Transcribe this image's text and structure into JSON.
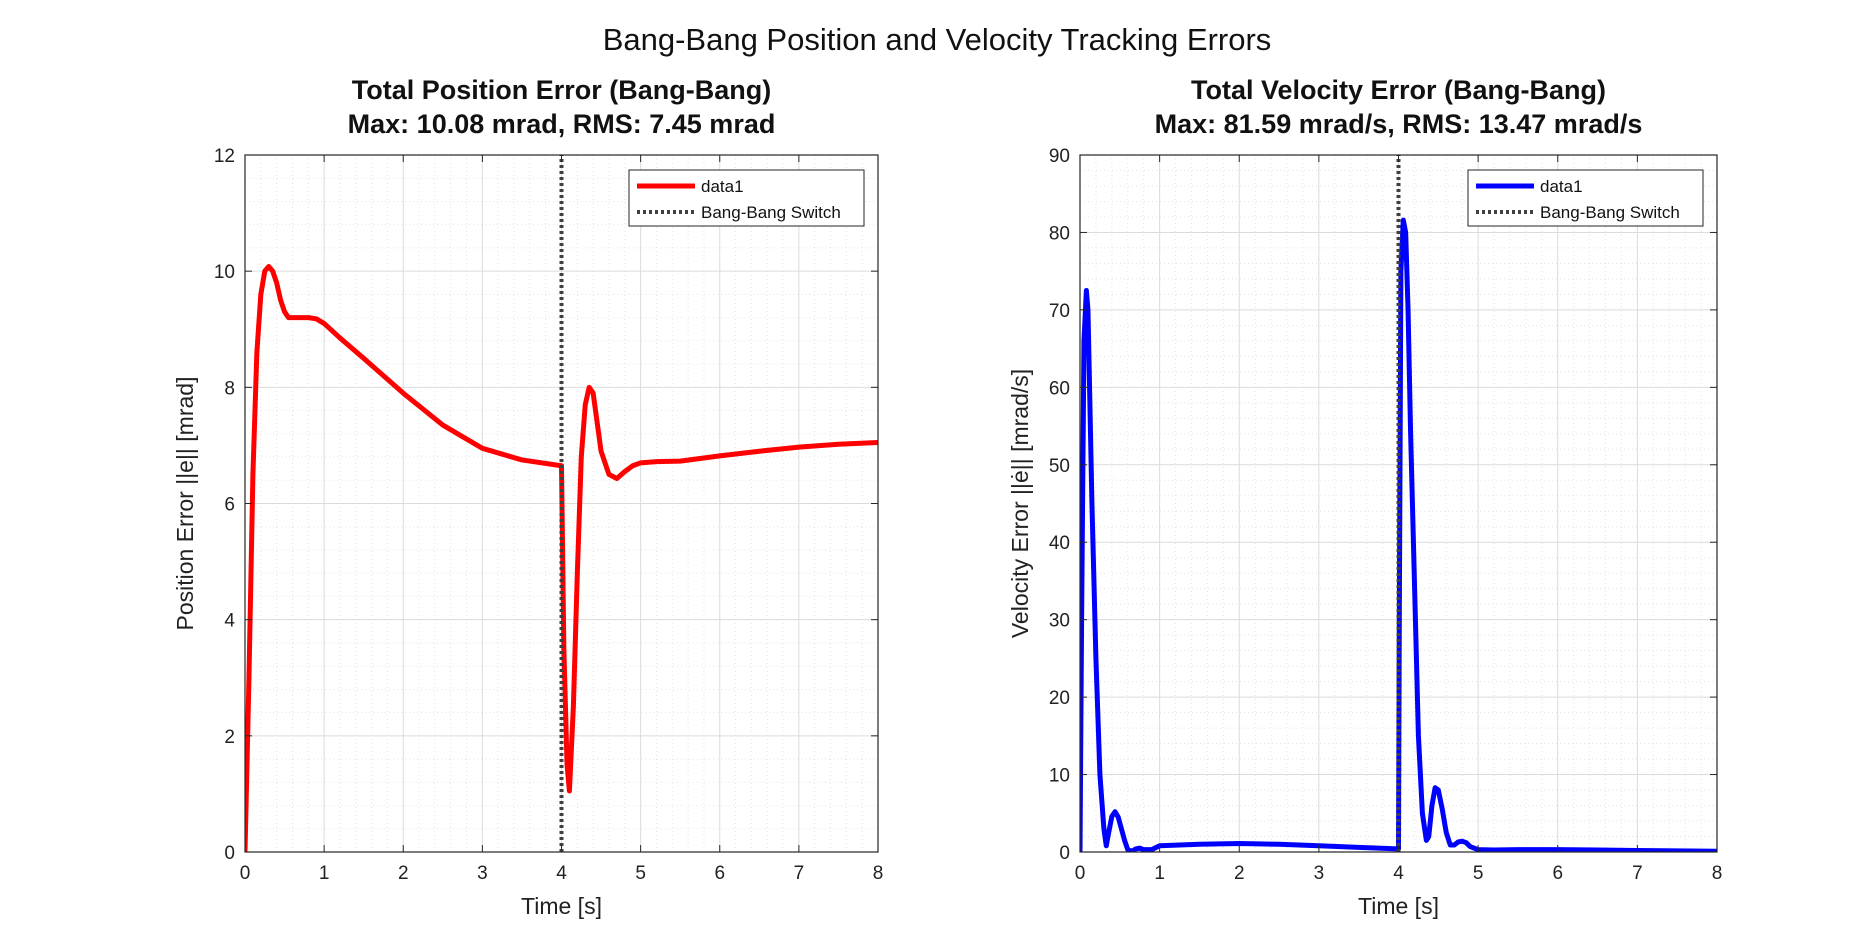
{
  "figure": {
    "suptitle": "Bang-Bang Position and Velocity Tracking Errors"
  },
  "chart_data": [
    {
      "type": "line",
      "title_line1": "Total Position Error (Bang-Bang)",
      "title_line2": "Max: 10.08 mrad, RMS: 7.45 mrad",
      "xlabel": "Time [s]",
      "ylabel": "Position Error ||e|| [mrad]",
      "xlim": [
        0,
        8
      ],
      "ylim": [
        0,
        12
      ],
      "xticks": [
        0,
        1,
        2,
        3,
        4,
        5,
        6,
        7,
        8
      ],
      "yticks": [
        0,
        2,
        4,
        6,
        8,
        10,
        12
      ],
      "grid": true,
      "minor_grid": true,
      "legend_position": "top-right",
      "switch_time": 4.0,
      "series": [
        {
          "name": "data1",
          "color": "#ff0000",
          "style": "solid",
          "x": [
            0,
            0.05,
            0.1,
            0.15,
            0.2,
            0.25,
            0.3,
            0.35,
            0.4,
            0.45,
            0.5,
            0.55,
            0.6,
            0.7,
            0.8,
            0.9,
            1.0,
            1.2,
            1.5,
            2.0,
            2.5,
            3.0,
            3.5,
            4.0,
            4.03,
            4.07,
            4.1,
            4.15,
            4.2,
            4.25,
            4.3,
            4.35,
            4.4,
            4.45,
            4.5,
            4.6,
            4.7,
            4.8,
            4.9,
            5.0,
            5.2,
            5.5,
            6.0,
            6.5,
            7.0,
            7.5,
            8.0
          ],
          "y": [
            0,
            3.0,
            6.5,
            8.6,
            9.6,
            10.0,
            10.08,
            10.0,
            9.8,
            9.5,
            9.3,
            9.2,
            9.2,
            9.2,
            9.2,
            9.18,
            9.1,
            8.85,
            8.5,
            7.9,
            7.35,
            6.95,
            6.75,
            6.65,
            3.5,
            1.5,
            1.05,
            2.5,
            4.8,
            6.8,
            7.7,
            8.0,
            7.9,
            7.4,
            6.9,
            6.5,
            6.43,
            6.55,
            6.65,
            6.7,
            6.72,
            6.73,
            6.82,
            6.9,
            6.97,
            7.02,
            7.05
          ]
        },
        {
          "name": "Bang-Bang Switch",
          "color": "#404040",
          "style": "dotted",
          "x": [
            4,
            4
          ],
          "y": [
            0,
            12
          ]
        }
      ]
    },
    {
      "type": "line",
      "title_line1": "Total Velocity Error (Bang-Bang)",
      "title_line2": "Max: 81.59 mrad/s, RMS: 13.47 mrad/s",
      "xlabel": "Time [s]",
      "ylabel": "Velocity Error ||ė|| [mrad/s]",
      "xlim": [
        0,
        8
      ],
      "ylim": [
        0,
        90
      ],
      "xticks": [
        0,
        1,
        2,
        3,
        4,
        5,
        6,
        7,
        8
      ],
      "yticks": [
        0,
        10,
        20,
        30,
        40,
        50,
        60,
        70,
        80,
        90
      ],
      "grid": true,
      "minor_grid": true,
      "legend_position": "top-right",
      "switch_time": 4.0,
      "series": [
        {
          "name": "data1",
          "color": "#0000ff",
          "style": "solid",
          "x": [
            0,
            0.02,
            0.05,
            0.08,
            0.1,
            0.12,
            0.15,
            0.2,
            0.25,
            0.3,
            0.33,
            0.36,
            0.4,
            0.44,
            0.48,
            0.52,
            0.56,
            0.6,
            0.65,
            0.7,
            0.75,
            0.8,
            0.9,
            1.0,
            1.5,
            2.0,
            2.5,
            3.0,
            3.5,
            4.0,
            4.01,
            4.03,
            4.06,
            4.09,
            4.12,
            4.15,
            4.2,
            4.25,
            4.3,
            4.35,
            4.38,
            4.42,
            4.46,
            4.5,
            4.55,
            4.6,
            4.65,
            4.7,
            4.75,
            4.8,
            4.85,
            4.9,
            5.0,
            5.2,
            5.5,
            6.0,
            6.5,
            7.0,
            7.5,
            8.0
          ],
          "y": [
            0,
            30,
            66,
            72.5,
            70,
            60,
            45,
            25,
            10,
            3,
            0.8,
            2.5,
            4.6,
            5.2,
            4.5,
            3.0,
            1.5,
            0.3,
            0.1,
            0.4,
            0.5,
            0.3,
            0.3,
            0.8,
            1.0,
            1.1,
            1.0,
            0.8,
            0.6,
            0.4,
            30,
            75,
            81.59,
            80,
            70,
            55,
            35,
            15,
            5,
            1.5,
            2.0,
            6,
            8.3,
            8.0,
            5.5,
            2.5,
            0.9,
            0.9,
            1.3,
            1.4,
            1.2,
            0.7,
            0.3,
            0.25,
            0.3,
            0.3,
            0.25,
            0.2,
            0.15,
            0.1
          ]
        },
        {
          "name": "Bang-Bang Switch",
          "color": "#404040",
          "style": "dotted",
          "x": [
            4,
            4
          ],
          "y": [
            0,
            90
          ]
        }
      ]
    }
  ]
}
